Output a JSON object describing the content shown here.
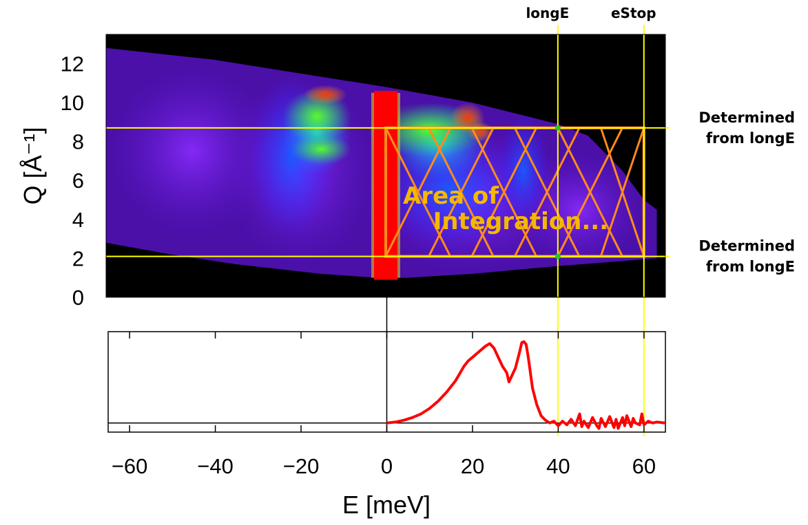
{
  "chart_data": [
    {
      "type": "heatmap",
      "name": "Q-E intensity map",
      "xlim": [
        -65,
        65
      ],
      "ylim": [
        0,
        13.5
      ],
      "ylabel": "Q [Å⁻¹]",
      "yticks": [
        0,
        2,
        4,
        6,
        8,
        10,
        12
      ],
      "yticks_text": [
        "0",
        "2",
        "4",
        "6",
        "8",
        "10",
        "12"
      ],
      "background": "#000000",
      "colormap": [
        "#000000",
        "#3a0070",
        "#7a10ff",
        "#1a3cff",
        "#10c8ff",
        "#30ff40",
        "#e8ff00",
        "#ff7800",
        "#ff0000"
      ],
      "elastic_line_E": 0,
      "bright_regions": [
        {
          "e_min": -25,
          "e_max": -5,
          "q_min": 7.5,
          "q_max": 10.8,
          "level": "high"
        },
        {
          "e_min": 2,
          "e_max": 30,
          "q_min": 7.0,
          "q_max": 10.2,
          "level": "high"
        },
        {
          "e_min": 16,
          "e_max": 24,
          "q_min": 8.4,
          "q_max": 10.2,
          "level": "peak"
        }
      ],
      "vertical_markers": [
        {
          "label": "longE",
          "E": 40,
          "color": "#ffff00"
        },
        {
          "label": "eStop",
          "E": 60,
          "color": "#ffff00"
        }
      ],
      "horizontal_markers": [
        {
          "Q": 8.7,
          "label_lines": [
            "Determined",
            "from longE"
          ],
          "color": "#ffff00"
        },
        {
          "Q": 2.1,
          "label_lines": [
            "Determined",
            "from longE"
          ],
          "color": "#ffff00"
        }
      ],
      "marker_points": [
        {
          "E": 40,
          "Q": 8.7,
          "color": "#22cc22"
        },
        {
          "E": 40,
          "Q": 2.1,
          "color": "#22cc22"
        }
      ],
      "integration_area": {
        "e_min": 0,
        "e_max": 60,
        "q_min": 2.1,
        "q_max": 8.7,
        "color": "#ff8c1a",
        "label_lines": [
          "Area of",
          "Integration..."
        ]
      }
    },
    {
      "type": "line",
      "name": "Integrated spectrum",
      "xlabel": "E [meV]",
      "xlim": [
        -65,
        65
      ],
      "xticks": [
        -60,
        -40,
        -20,
        0,
        20,
        40,
        60
      ],
      "xticks_text": [
        "−60",
        "−40",
        "−20",
        "0",
        "20",
        "40",
        "60"
      ],
      "ylim": [
        -0.1,
        1.0
      ],
      "baseline": 0,
      "zero_line_E": 0,
      "series": [
        {
          "color": "#ff0000",
          "x": [
            0,
            2,
            4,
            6,
            8,
            10,
            12,
            14,
            16,
            17,
            18,
            19,
            20,
            21,
            22,
            23,
            24,
            25,
            26,
            27,
            28,
            28.5,
            29,
            30,
            31,
            31.5,
            32,
            32.5,
            33,
            33.5,
            34,
            35,
            36,
            37,
            38,
            39,
            40,
            41,
            42,
            43,
            44,
            45,
            45.5,
            46,
            47,
            48,
            49,
            49.5,
            50,
            51,
            52,
            53,
            53.5,
            54,
            55,
            55.5,
            56,
            57,
            57.5,
            58,
            59,
            59.5,
            60,
            61,
            62,
            63,
            65
          ],
          "y": [
            0.0,
            0.01,
            0.03,
            0.06,
            0.1,
            0.16,
            0.24,
            0.34,
            0.46,
            0.54,
            0.62,
            0.68,
            0.72,
            0.76,
            0.8,
            0.84,
            0.87,
            0.82,
            0.72,
            0.62,
            0.55,
            0.45,
            0.5,
            0.6,
            0.78,
            0.88,
            0.89,
            0.86,
            0.72,
            0.55,
            0.38,
            0.2,
            0.08,
            0.03,
            0.0,
            0.02,
            -0.03,
            0.02,
            -0.02,
            0.04,
            -0.03,
            0.1,
            -0.04,
            0.02,
            -0.05,
            0.06,
            -0.03,
            -0.06,
            0.05,
            -0.04,
            0.07,
            -0.05,
            0.04,
            -0.06,
            0.06,
            -0.03,
            0.08,
            -0.04,
            0.05,
            0.0,
            -0.02,
            0.1,
            -0.02,
            0.02,
            0.0,
            0.01,
            0.0
          ]
        }
      ],
      "vertical_markers": [
        {
          "E": 40,
          "color": "#ffff00"
        },
        {
          "E": 60,
          "color": "#ffff00"
        }
      ]
    }
  ]
}
